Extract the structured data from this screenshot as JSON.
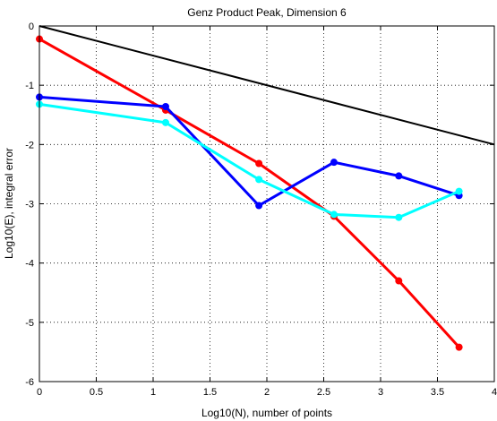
{
  "chart_data": {
    "type": "line",
    "title": "Genz Product Peak, Dimension 6",
    "xlabel": "Log10(N), number of points",
    "ylabel": "Log10(E), integral error",
    "xlim": [
      0,
      4
    ],
    "ylim": [
      -6,
      0
    ],
    "xticks": [
      "0",
      "0.5",
      "1",
      "1.5",
      "2",
      "2.5",
      "3",
      "3.5",
      "4"
    ],
    "yticks": [
      "0",
      "-1",
      "-2",
      "-3",
      "-4",
      "-5",
      "-6"
    ],
    "grid": true,
    "series": [
      {
        "color": "#000000",
        "markers": false,
        "x": [
          0,
          4
        ],
        "y": [
          0,
          -2.0
        ]
      },
      {
        "color": "#ff0000",
        "markers": true,
        "x": [
          0,
          1.11,
          1.93,
          2.59,
          3.16,
          3.69
        ],
        "y": [
          -0.22,
          -1.42,
          -2.32,
          -3.21,
          -4.3,
          -5.42
        ]
      },
      {
        "color": "#0000ff",
        "markers": true,
        "x": [
          0,
          1.11,
          1.93,
          2.59,
          3.16,
          3.69
        ],
        "y": [
          -1.2,
          -1.36,
          -3.03,
          -2.3,
          -2.53,
          -2.86
        ]
      },
      {
        "color": "#00ffff",
        "markers": true,
        "x": [
          0,
          1.11,
          1.93,
          2.59,
          3.16,
          3.69
        ],
        "y": [
          -1.32,
          -1.63,
          -2.59,
          -3.18,
          -3.23,
          -2.79
        ]
      }
    ]
  }
}
